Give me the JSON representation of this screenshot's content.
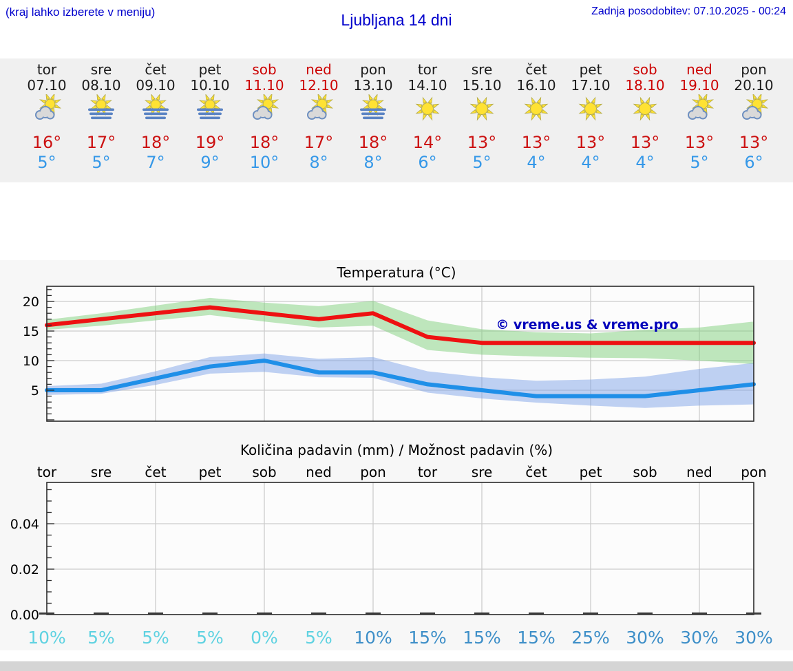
{
  "header": {
    "hint": "(kraj lahko izberete v meniju)",
    "title": "Ljubljana 14 dni",
    "updated": "Zadnja posodobitev: 07.10.2025 - 00:24"
  },
  "days": [
    {
      "name": "tor",
      "date": "07.10",
      "weekend": false,
      "icon": "partly-cloudy",
      "high": "16°",
      "low": "5°"
    },
    {
      "name": "sre",
      "date": "08.10",
      "weekend": false,
      "icon": "fog-sun",
      "high": "17°",
      "low": "5°"
    },
    {
      "name": "čet",
      "date": "09.10",
      "weekend": false,
      "icon": "fog-sun",
      "high": "18°",
      "low": "7°"
    },
    {
      "name": "pet",
      "date": "10.10",
      "weekend": false,
      "icon": "fog-sun",
      "high": "19°",
      "low": "9°"
    },
    {
      "name": "sob",
      "date": "11.10",
      "weekend": true,
      "icon": "partly-cloudy",
      "high": "18°",
      "low": "10°"
    },
    {
      "name": "ned",
      "date": "12.10",
      "weekend": true,
      "icon": "partly-cloudy",
      "high": "17°",
      "low": "8°"
    },
    {
      "name": "pon",
      "date": "13.10",
      "weekend": false,
      "icon": "fog-sun",
      "high": "18°",
      "low": "8°"
    },
    {
      "name": "tor",
      "date": "14.10",
      "weekend": false,
      "icon": "sunny",
      "high": "14°",
      "low": "6°"
    },
    {
      "name": "sre",
      "date": "15.10",
      "weekend": false,
      "icon": "sunny",
      "high": "13°",
      "low": "5°"
    },
    {
      "name": "čet",
      "date": "16.10",
      "weekend": false,
      "icon": "sunny",
      "high": "13°",
      "low": "4°"
    },
    {
      "name": "pet",
      "date": "17.10",
      "weekend": false,
      "icon": "sunny",
      "high": "13°",
      "low": "4°"
    },
    {
      "name": "sob",
      "date": "18.10",
      "weekend": true,
      "icon": "sunny",
      "high": "13°",
      "low": "4°"
    },
    {
      "name": "ned",
      "date": "19.10",
      "weekend": true,
      "icon": "partly-cloudy",
      "high": "13°",
      "low": "5°"
    },
    {
      "name": "pon",
      "date": "20.10",
      "weekend": false,
      "icon": "partly-cloudy",
      "high": "13°",
      "low": "6°"
    }
  ],
  "chart_data": [
    {
      "type": "line",
      "title": "Temperatura (°C)",
      "annotation": "© vreme.us & vreme.pro",
      "categories": [
        "tor",
        "sre",
        "čet",
        "pet",
        "sob",
        "ned",
        "pon",
        "tor",
        "sre",
        "čet",
        "pet",
        "sob",
        "ned",
        "pon"
      ],
      "yticks": [
        5,
        10,
        15,
        20
      ],
      "ylim": [
        -0.2,
        22.6
      ],
      "grid": true,
      "series": [
        {
          "name": "max-temp",
          "color": "#ee1111",
          "values": [
            16,
            17,
            18,
            19,
            18,
            17,
            18,
            14,
            13,
            13,
            13,
            13,
            13,
            13
          ]
        },
        {
          "name": "min-temp",
          "color": "#1f8fe8",
          "values": [
            5,
            5,
            7,
            9,
            10,
            8,
            8,
            6,
            5,
            4,
            4,
            4,
            5,
            6
          ]
        },
        {
          "name": "max-range-upper",
          "values": [
            16.9,
            18.0,
            19.3,
            20.6,
            19.8,
            19.2,
            20.1,
            16.8,
            15.3,
            14.8,
            14.6,
            15.2,
            15.6,
            16.6
          ]
        },
        {
          "name": "max-range-lower",
          "values": [
            15.2,
            15.9,
            16.8,
            17.7,
            16.6,
            15.6,
            15.9,
            11.8,
            11.0,
            10.7,
            10.5,
            10.4,
            10.0,
            9.4
          ]
        },
        {
          "name": "min-range-upper",
          "values": [
            5.7,
            6.1,
            8.2,
            10.6,
            11.2,
            10.3,
            10.6,
            8.2,
            7.2,
            6.6,
            6.8,
            7.3,
            8.6,
            9.6
          ]
        },
        {
          "name": "min-range-lower",
          "values": [
            4.2,
            4.4,
            5.9,
            7.8,
            8.1,
            7.2,
            7.1,
            4.6,
            3.6,
            2.9,
            2.4,
            2.0,
            2.4,
            2.6
          ]
        }
      ]
    },
    {
      "type": "bar",
      "title": "Količina padavin (mm) / Možnost padavin (%)",
      "categories": [
        "tor",
        "sre",
        "čet",
        "pet",
        "sob",
        "ned",
        "pon",
        "tor",
        "sre",
        "čet",
        "pet",
        "sob",
        "ned",
        "pon"
      ],
      "values": [
        0,
        0,
        0,
        0,
        0,
        0,
        0,
        0,
        0,
        0,
        0,
        0,
        0,
        0
      ],
      "ytick_labels": [
        "0.00",
        "0.02",
        "0.04"
      ],
      "ylim": [
        0,
        0.058
      ],
      "grid": true,
      "percent_labels": [
        "10%",
        "5%",
        "5%",
        "5%",
        "0%",
        "5%",
        "10%",
        "15%",
        "15%",
        "15%",
        "25%",
        "30%",
        "30%",
        "30%"
      ],
      "percent_colors": [
        "#5fd2e1",
        "#5fd2e1",
        "#5fd2e1",
        "#5fd2e1",
        "#5fd2e1",
        "#5fd2e1",
        "#3e8fc8",
        "#3e8fc8",
        "#3e8fc8",
        "#3e8fc8",
        "#3e8fc8",
        "#3e8fc8",
        "#3e8fc8",
        "#3e8fc8"
      ]
    }
  ],
  "colors": {
    "header_blue": "#0000cc",
    "weekend_red": "#cc0000",
    "high_temp": "#cc1111",
    "low_temp": "#3598e8",
    "band_green": "#7fd07b",
    "band_blue": "#7fa3e8",
    "grid": "#cccccc",
    "copyright_blue": "#0000bb"
  }
}
